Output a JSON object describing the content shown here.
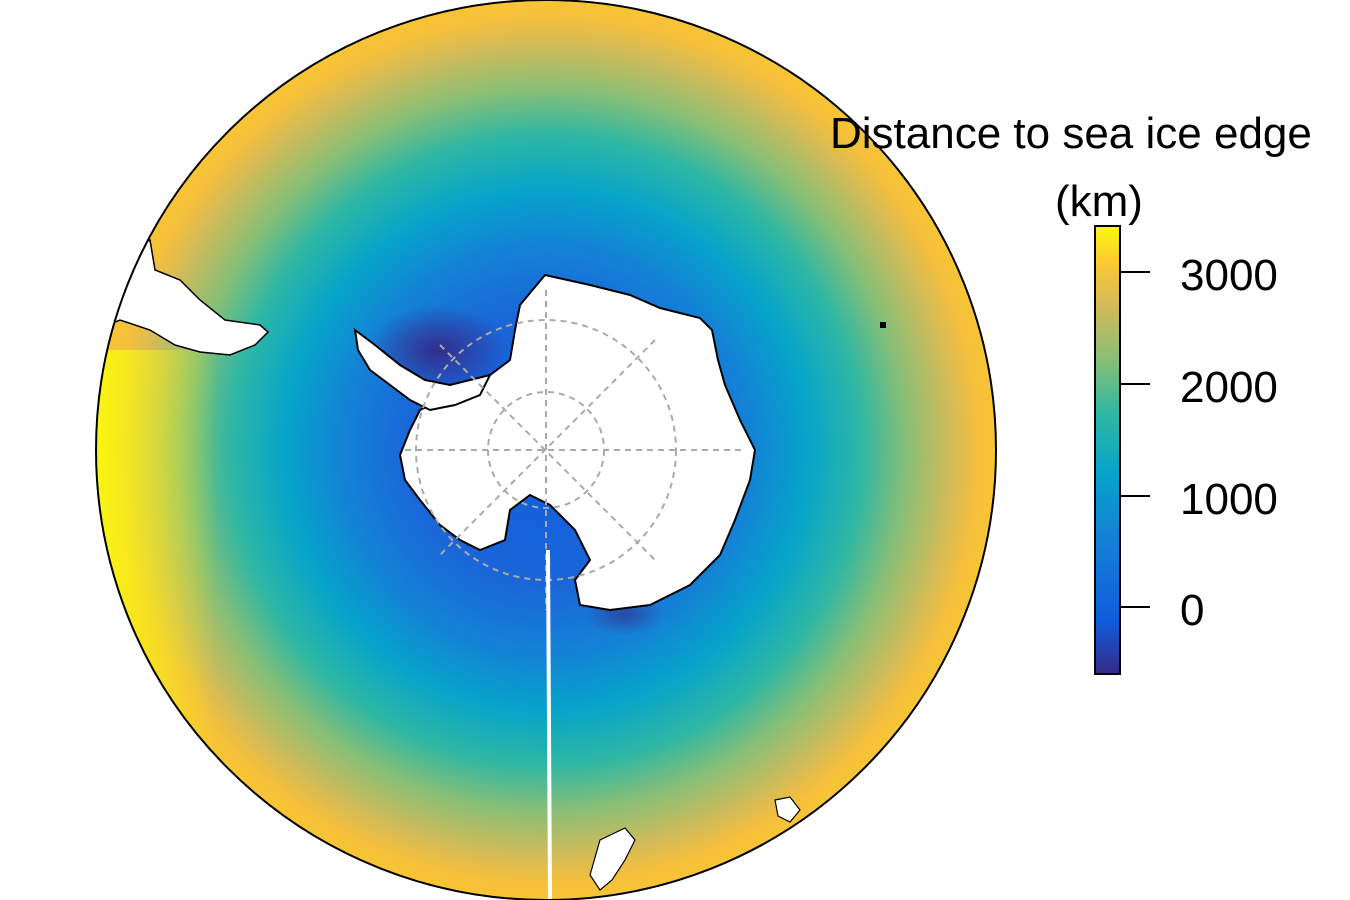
{
  "legend": {
    "title_line1": "Distance to sea ice edge",
    "title_line2": "(km)",
    "ticks": [
      "3000",
      "2000",
      "1000",
      "0"
    ],
    "tick_values": [
      3000,
      2000,
      1000,
      0
    ],
    "range": [
      -600,
      3450
    ],
    "colormap": [
      "#352a87",
      "#0f5cdd",
      "#1481d6",
      "#06a4ca",
      "#2eb7a4",
      "#87bf77",
      "#d1bb59",
      "#fec832",
      "#f9fb0e"
    ]
  },
  "map": {
    "projection": "south-polar-stereographic",
    "land_color": "#ffffff",
    "coastline_color": "#000000",
    "graticule_color": "#aaaaaa"
  }
}
